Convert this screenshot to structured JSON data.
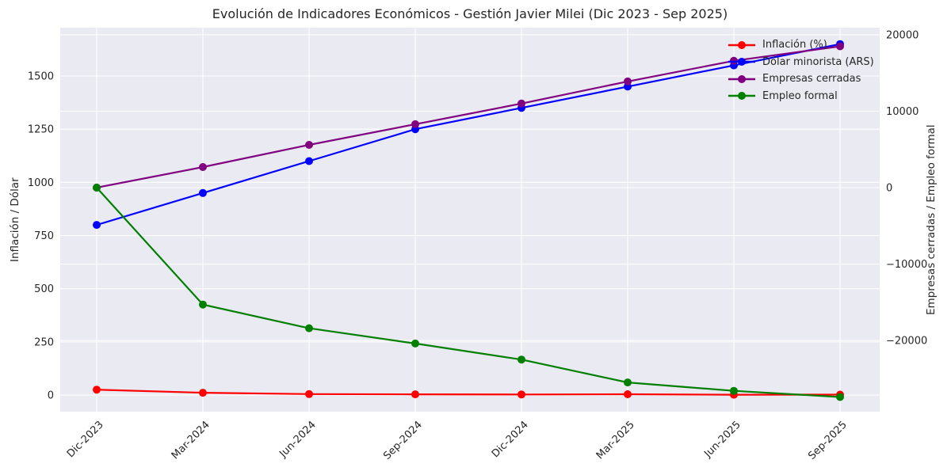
{
  "chart_data": {
    "type": "line",
    "title": "Evolución de Indicadores Económicos - Gestión Javier Milei (Dic 2023 - Sep 2025)",
    "categories": [
      "Dic-2023",
      "Mar-2024",
      "Jun-2024",
      "Sep-2024",
      "Dic-2024",
      "Mar-2025",
      "Jun-2025",
      "Sep-2025"
    ],
    "series": [
      {
        "name": "Inflación (%)",
        "color": "#ff0000",
        "axis": "left",
        "values": [
          25.5,
          11.0,
          4.6,
          3.5,
          2.7,
          3.7,
          1.6,
          2.1
        ]
      },
      {
        "name": "Dólar minorista (ARS)",
        "color": "#0000ff",
        "axis": "left",
        "values": [
          800,
          950,
          1100,
          1250,
          1350,
          1450,
          1550,
          1650
        ]
      },
      {
        "name": "Empresas cerradas",
        "color": "#800080",
        "axis": "right",
        "values": [
          0,
          2700,
          5600,
          8300,
          11000,
          13900,
          16600,
          18500
        ]
      },
      {
        "name": "Empleo formal",
        "color": "#008000",
        "axis": "right",
        "values": [
          0,
          -15300,
          -18400,
          -20400,
          -22500,
          -25500,
          -26600,
          -27400
        ]
      }
    ],
    "left_axis": {
      "label": "Inflación / Dólar",
      "min": -78,
      "max": 1727,
      "ticks": [
        {
          "value": 0,
          "label": "0"
        },
        {
          "value": 250,
          "label": "250"
        },
        {
          "value": 500,
          "label": "500"
        },
        {
          "value": 750,
          "label": "750"
        },
        {
          "value": 1000,
          "label": "1000"
        },
        {
          "value": 1250,
          "label": "1250"
        },
        {
          "value": 1500,
          "label": "1500"
        }
      ]
    },
    "right_axis": {
      "label": "Empresas cerradas / Empleo formal",
      "min": -29320,
      "max": 20930,
      "ticks": [
        {
          "value": 20000,
          "label": "20000"
        },
        {
          "value": 10000,
          "label": "10000"
        },
        {
          "value": 0,
          "label": "0"
        },
        {
          "value": -10000,
          "label": "−10000"
        },
        {
          "value": -20000,
          "label": "−20000"
        }
      ]
    },
    "legend_position": "upper right",
    "grid": true,
    "colors": {
      "figure_background": "#ffffff",
      "plot_background": "#eaeaf2",
      "grid": "#ffffff",
      "text": "#262626"
    }
  }
}
